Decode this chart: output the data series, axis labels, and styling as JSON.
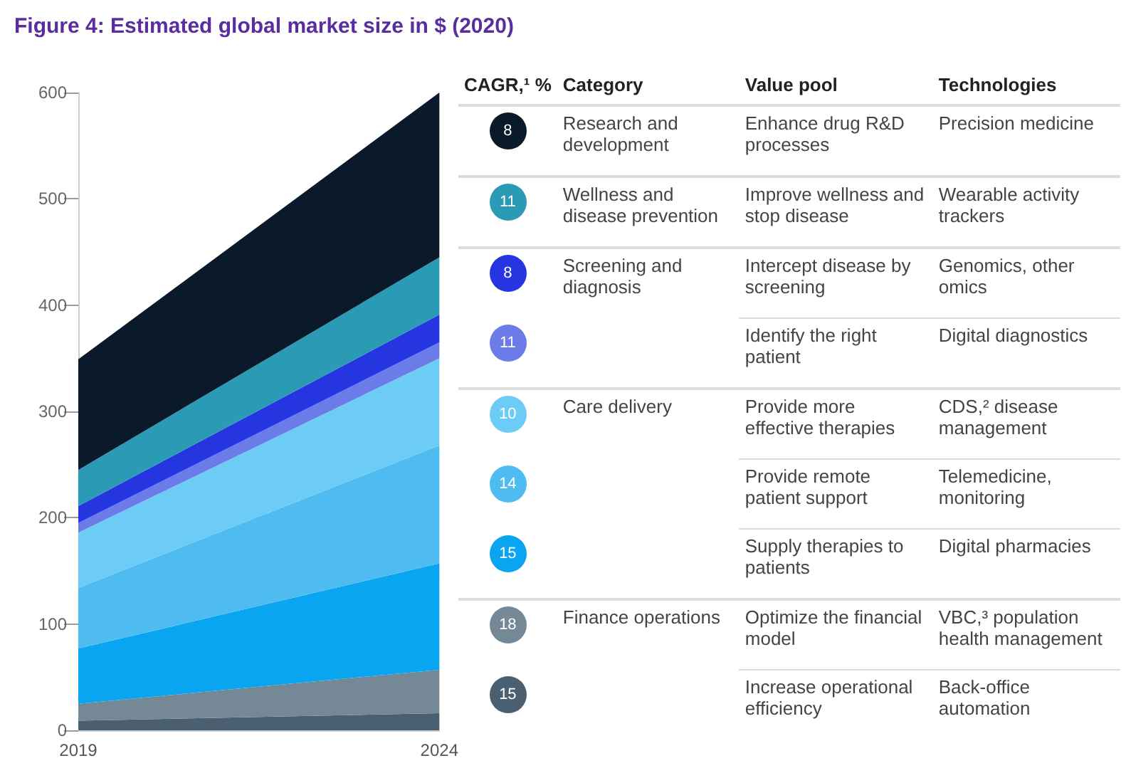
{
  "chart_data": [
    {
      "type": "area",
      "title": "Figure 4: Estimated global market size in $ (2020)",
      "stacked": true,
      "categories": [
        "2019",
        "2024"
      ],
      "ylim": [
        0,
        600
      ],
      "yticks": [
        0,
        100,
        200,
        300,
        400,
        500,
        600
      ],
      "series": [
        {
          "color": "#4a5f70",
          "values": [
            9,
            16
          ]
        },
        {
          "color": "#748896",
          "values": [
            16,
            41
          ]
        },
        {
          "color": "#0aa5f0",
          "values": [
            52,
            100
          ]
        },
        {
          "color": "#4ebcf0",
          "values": [
            57,
            111
          ]
        },
        {
          "color": "#6dccf5",
          "values": [
            52,
            82
          ]
        },
        {
          "color": "#6b7be8",
          "values": [
            9,
            15
          ]
        },
        {
          "color": "#2536e0",
          "values": [
            16,
            26
          ]
        },
        {
          "color": "#2a9ab5",
          "values": [
            34,
            54
          ]
        },
        {
          "color": "#0b1a2a",
          "values": [
            104,
            155
          ]
        }
      ]
    },
    {
      "type": "other",
      "categories": [
        "CAGR,¹ %",
        "Category",
        "Value pool",
        "Technologies"
      ],
      "colors": [
        "#0b1a2a",
        "#2a9ab5",
        "#2536e0",
        "#6b7be8",
        "#6dccf5",
        "#4ebcf0",
        "#0aa5f0",
        "#748896",
        "#4a5f70"
      ],
      "cell_labels": [
        [
          "8",
          "Research and development",
          "Enhance drug R&D processes",
          "Precision medicine"
        ],
        [
          "11",
          "Wellness and disease prevention",
          "Improve wellness and stop disease",
          "Wearable activity trackers"
        ],
        [
          "8",
          "Screening and diagnosis",
          "Intercept disease by screening",
          "Genomics, other omics"
        ],
        [
          "11",
          null,
          "Identify the right patient",
          "Digital diagnostics"
        ],
        [
          "10",
          "Care delivery",
          "Provide more effective therapies",
          "CDS,² disease management"
        ],
        [
          "14",
          null,
          "Provide remote patient support",
          "Telemedicine, monitoring"
        ],
        [
          "15",
          null,
          "Supply therapies to patients",
          "Digital pharmacies"
        ],
        [
          "18",
          "Finance operations",
          "Optimize the financial model",
          "VBC,³ population health management"
        ],
        [
          "15",
          null,
          "Increase operational efficiency",
          "Back-office automation"
        ]
      ]
    }
  ]
}
